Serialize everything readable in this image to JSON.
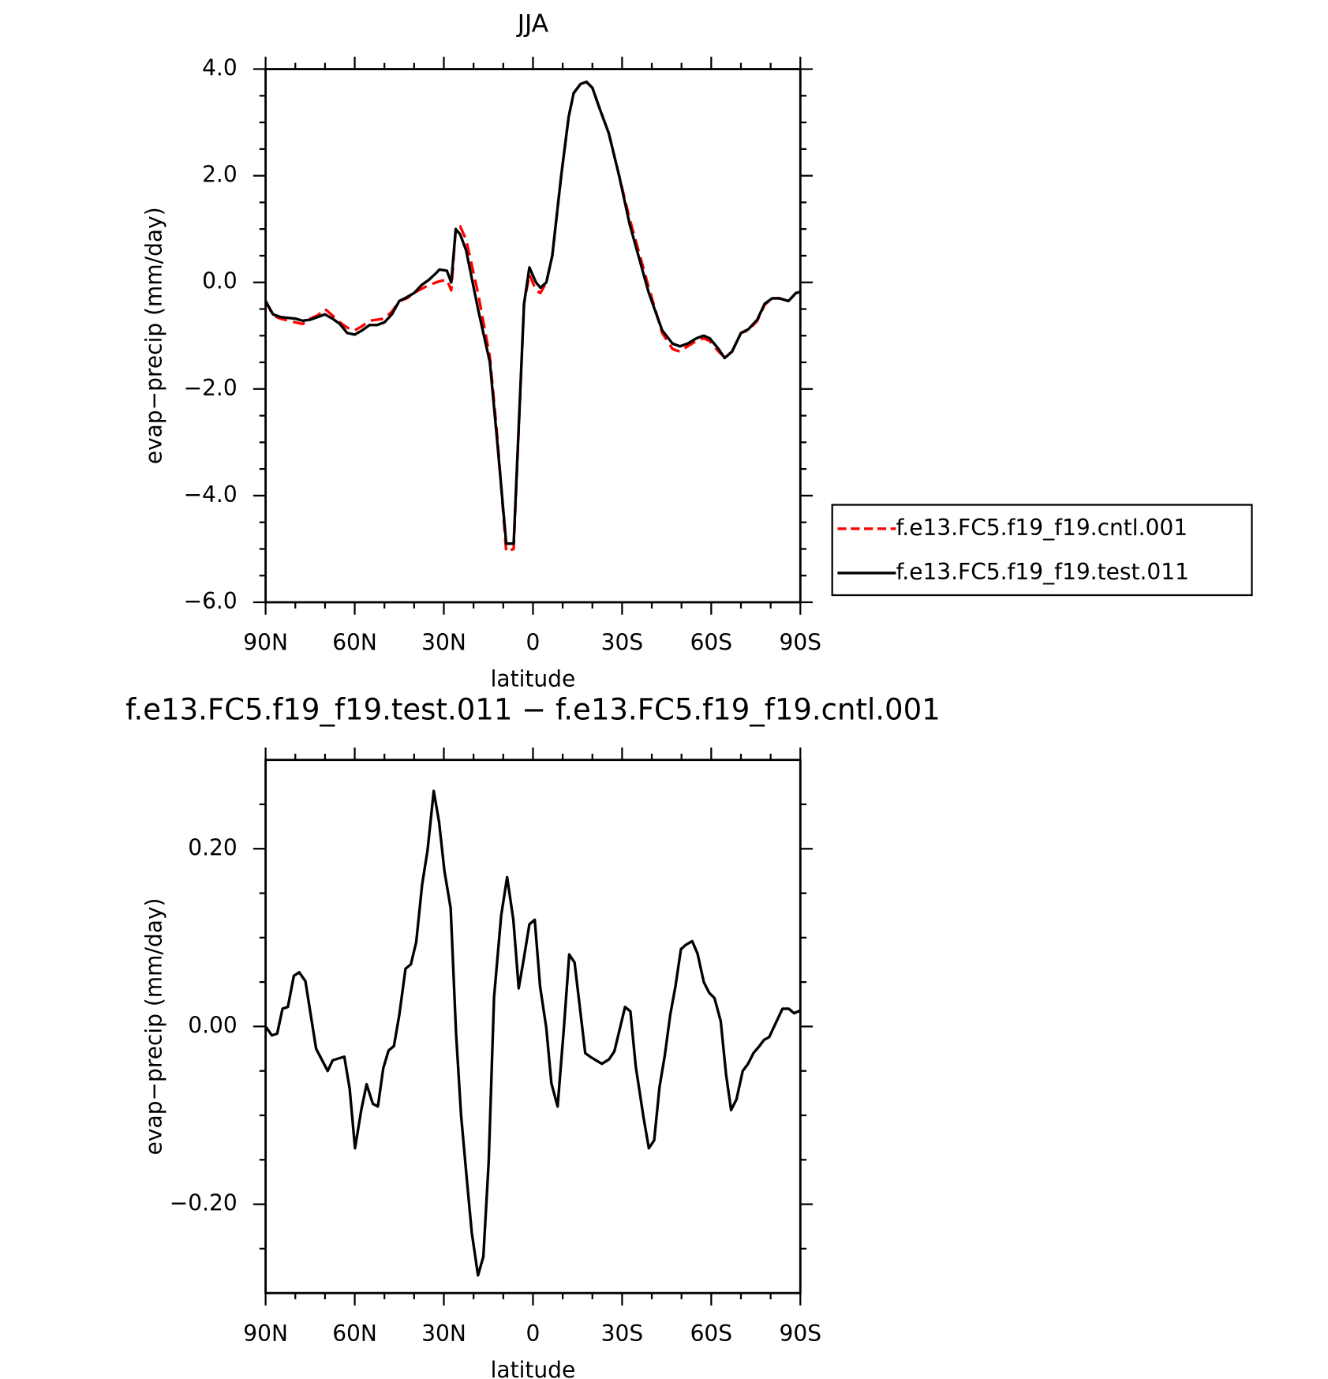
{
  "chart_data": [
    {
      "type": "line",
      "title": "JJA",
      "xlabel": "latitude",
      "ylabel": "evap−precip (mm/day)",
      "x": [
        90,
        87.5,
        85,
        80,
        77.5,
        75,
        72.5,
        70,
        67.5,
        65,
        62.5,
        60,
        57.5,
        55,
        52.5,
        50,
        47.5,
        45,
        42.5,
        40,
        37.5,
        35,
        32.5,
        31.5,
        29,
        27.5,
        26,
        24.5,
        22.5,
        18.5,
        14.5,
        12,
        9,
        6.5,
        3,
        1.2,
        -1,
        -2.5,
        -4.5,
        -6.5,
        -9.5,
        -12,
        -13.7,
        -16,
        -18,
        -20,
        -22.5,
        -25.5,
        -29,
        -32.5,
        -35.5,
        -39,
        -43.5,
        -47,
        -49.5,
        -52,
        -55,
        -57.5,
        -59.5,
        -62.5,
        -64.5,
        -67,
        -70,
        -72.5,
        -75.5,
        -78,
        -80.5,
        -83,
        -86,
        -88.5,
        -90
      ],
      "series": [
        {
          "name": "f.e13.FC5.f19_f19.cntl.001",
          "color": "#ff0000",
          "dash": true,
          "values": [
            -0.35,
            -0.62,
            -0.68,
            -0.75,
            -0.78,
            -0.68,
            -0.62,
            -0.5,
            -0.62,
            -0.75,
            -0.85,
            -0.9,
            -0.82,
            -0.72,
            -0.7,
            -0.68,
            -0.55,
            -0.35,
            -0.3,
            -0.2,
            -0.12,
            -0.05,
            0.0,
            0.02,
            0.05,
            -0.15,
            1.0,
            1.05,
            0.8,
            -0.2,
            -1.4,
            -2.9,
            -5.05,
            -5.0,
            -0.4,
            0.15,
            -0.15,
            -0.2,
            0.0,
            0.5,
            2.0,
            3.1,
            3.55,
            3.72,
            3.76,
            3.65,
            3.25,
            2.8,
            2.0,
            1.2,
            0.6,
            -0.1,
            -0.95,
            -1.25,
            -1.3,
            -1.2,
            -1.1,
            -1.05,
            -1.1,
            -1.3,
            -1.4,
            -1.3,
            -0.95,
            -0.9,
            -0.72,
            -0.42,
            -0.3,
            -0.3,
            -0.35,
            -0.2,
            -0.18
          ]
        },
        {
          "name": "f.e13.FC5.f19_f19.test.011",
          "color": "#000000",
          "dash": false,
          "values": [
            -0.35,
            -0.6,
            -0.65,
            -0.68,
            -0.72,
            -0.7,
            -0.65,
            -0.6,
            -0.68,
            -0.78,
            -0.95,
            -0.98,
            -0.9,
            -0.8,
            -0.8,
            -0.75,
            -0.6,
            -0.35,
            -0.28,
            -0.2,
            -0.05,
            0.05,
            0.18,
            0.24,
            0.22,
            0.0,
            1.0,
            0.9,
            0.6,
            -0.5,
            -1.5,
            -3.0,
            -4.9,
            -4.9,
            -0.4,
            0.28,
            0.0,
            -0.1,
            0.0,
            0.5,
            2.0,
            3.1,
            3.55,
            3.72,
            3.76,
            3.65,
            3.25,
            2.8,
            2.0,
            1.1,
            0.5,
            -0.2,
            -0.9,
            -1.15,
            -1.2,
            -1.15,
            -1.05,
            -1.0,
            -1.05,
            -1.25,
            -1.42,
            -1.3,
            -0.95,
            -0.88,
            -0.7,
            -0.4,
            -0.3,
            -0.3,
            -0.35,
            -0.2,
            -0.18
          ]
        }
      ],
      "xlim": [
        90,
        -90
      ],
      "xticks": [
        {
          "value": 90,
          "label": "90N"
        },
        {
          "value": 60,
          "label": "60N"
        },
        {
          "value": 30,
          "label": "30N"
        },
        0,
        {
          "value": -30,
          "label": "30S"
        },
        {
          "value": -60,
          "label": "60S"
        },
        {
          "value": -90,
          "label": "90S"
        }
      ],
      "xminorticks": [
        80,
        70,
        50,
        40,
        20,
        10,
        -10,
        -20,
        -40,
        -50,
        -70,
        -80
      ],
      "ylim": [
        -6,
        4
      ],
      "yticks": [
        {
          "value": -6,
          "label": "−6.0"
        },
        {
          "value": -4,
          "label": "−4.0"
        },
        {
          "value": -2,
          "label": "−2.0"
        },
        {
          "value": 0,
          "label": "0.0"
        },
        {
          "value": 2,
          "label": "2.0"
        },
        {
          "value": 4,
          "label": "4.0"
        }
      ],
      "yminorticks": [
        -5.5,
        -5,
        -4.5,
        -3.5,
        -3,
        -2.5,
        -1.5,
        -1,
        -0.5,
        0.5,
        1,
        1.5,
        2.5,
        3,
        3.5
      ],
      "legend": "outside-right"
    },
    {
      "type": "line",
      "title": "f.e13.FC5.f19_f19.test.011 − f.e13.FC5.f19_f19.cntl.001",
      "xlabel": "latitude",
      "ylabel": "evap−precip (mm/day)",
      "x": [
        90,
        87.9,
        86.1,
        84.3,
        82.5,
        80.5,
        78.7,
        76.6,
        73.0,
        69.1,
        67.4,
        63.5,
        61.7,
        59.9,
        57.8,
        56.0,
        53.9,
        52.2,
        50.4,
        48.6,
        46.8,
        45.0,
        42.9,
        41.1,
        39.3,
        37.3,
        35.5,
        33.4,
        31.6,
        29.8,
        27.7,
        25.9,
        24.2,
        22.4,
        20.6,
        18.5,
        16.7,
        14.9,
        13.1,
        10.7,
        8.7,
        6.6,
        4.8,
        3.0,
        1.2,
        -0.6,
        -2.4,
        -4.5,
        -6.2,
        -8.3,
        -10.4,
        -12.2,
        -14.0,
        -17.6,
        -19.7,
        -23.2,
        -25.6,
        -27.4,
        -31.0,
        -32.8,
        -34.6,
        -37.2,
        -39.0,
        -40.8,
        -42.6,
        -44.4,
        -46.2,
        -48.0,
        -49.8,
        -51.5,
        -53.6,
        -55.4,
        -57.5,
        -59.3,
        -61.1,
        -63.2,
        -65.0,
        -66.7,
        -68.5,
        -70.6,
        -72.4,
        -74.2,
        -76.0,
        -77.8,
        -79.5,
        -81.6,
        -84.0,
        -86.1,
        -87.9,
        -90
      ],
      "values": [
        0,
        -0.01,
        -0.008,
        0.02,
        0.022,
        0.057,
        0.061,
        0.051,
        -0.025,
        -0.05,
        -0.038,
        -0.034,
        -0.07,
        -0.137,
        -0.094,
        -0.065,
        -0.087,
        -0.09,
        -0.047,
        -0.027,
        -0.022,
        0.013,
        0.065,
        0.07,
        0.095,
        0.16,
        0.198,
        0.265,
        0.23,
        0.175,
        0.133,
        -0.007,
        -0.1,
        -0.167,
        -0.232,
        -0.28,
        -0.259,
        -0.152,
        0.033,
        0.125,
        0.168,
        0.12,
        0.043,
        0.078,
        0.115,
        0.12,
        0.045,
        -0.002,
        -0.064,
        -0.09,
        -0.002,
        0.081,
        0.072,
        -0.03,
        -0.035,
        -0.042,
        -0.037,
        -0.028,
        0.022,
        0.017,
        -0.045,
        -0.102,
        -0.137,
        -0.128,
        -0.068,
        -0.032,
        0.013,
        0.046,
        0.087,
        0.092,
        0.096,
        0.082,
        0.05,
        0.038,
        0.032,
        0.006,
        -0.054,
        -0.094,
        -0.082,
        -0.05,
        -0.042,
        -0.03,
        -0.023,
        -0.015,
        -0.012,
        0.003,
        0.02,
        0.02,
        0.015,
        0.018
      ],
      "color": "#000000",
      "xlim": [
        90,
        -90
      ],
      "xticks": [
        {
          "value": 90,
          "label": "90N"
        },
        {
          "value": 60,
          "label": "60N"
        },
        {
          "value": 30,
          "label": "30N"
        },
        0,
        {
          "value": -30,
          "label": "30S"
        },
        {
          "value": -60,
          "label": "60S"
        },
        {
          "value": -90,
          "label": "90S"
        }
      ],
      "xminorticks": [
        80,
        70,
        50,
        40,
        20,
        10,
        -10,
        -20,
        -40,
        -50,
        -70,
        -80
      ],
      "ylim": [
        -0.3,
        0.3
      ],
      "yticks": [
        {
          "value": -0.2,
          "label": "−0.20"
        },
        {
          "value": 0,
          "label": "0.00"
        },
        {
          "value": 0.2,
          "label": "0.20"
        }
      ],
      "yminorticks": [
        -0.25,
        -0.15,
        -0.1,
        -0.05,
        0.05,
        0.1,
        0.15,
        0.25
      ]
    }
  ]
}
